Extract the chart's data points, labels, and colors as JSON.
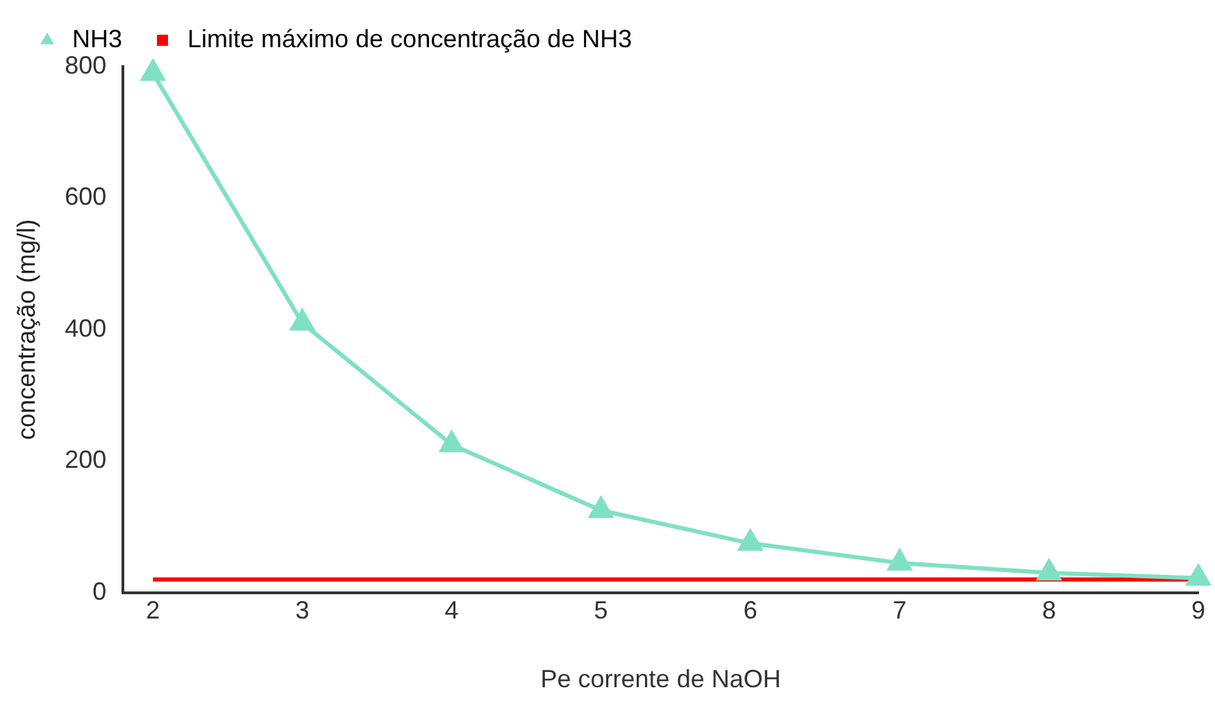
{
  "chart_data": {
    "type": "line",
    "xlabel": "Pe corrente de NaOH",
    "ylabel": "concentração (mg/l)",
    "x": [
      2,
      3,
      4,
      5,
      6,
      7,
      8,
      9
    ],
    "series": [
      {
        "name": "NH3",
        "color": "#7fe0c4",
        "marker": "triangle",
        "values": [
          790,
          410,
          225,
          125,
          75,
          45,
          30,
          22
        ]
      },
      {
        "name": "Limite máximo de concentração de NH3",
        "color": "#ff0000",
        "marker": "none",
        "values": [
          20,
          20,
          20,
          20,
          20,
          20,
          20,
          20
        ]
      }
    ],
    "xlim": [
      1.8,
      9
    ],
    "xticks": [
      2,
      3,
      4,
      5,
      6,
      7,
      8,
      9
    ],
    "ylim": [
      0,
      800
    ],
    "yticks": [
      0,
      200,
      400,
      600,
      800
    ],
    "grid": false,
    "legend": "top left"
  }
}
